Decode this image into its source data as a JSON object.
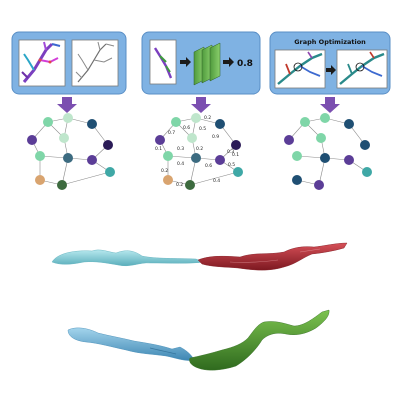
{
  "panels": {
    "step1": {
      "title": ""
    },
    "step2": {
      "output_value": "0.8"
    },
    "step3": {
      "title": "Graph Optimization"
    }
  },
  "edge_weights": [
    "0.7",
    "0.6",
    "0.5",
    "0.2",
    "0.1",
    "0.3",
    "0.2",
    "0.9",
    "0.4",
    "0.6",
    "0.3",
    "0.1",
    "0.2",
    "0.2",
    "0.5",
    "0.4"
  ],
  "colors": {
    "panel_fill": "#7fb2e3",
    "panel_stroke": "#5a8fc6",
    "arrow": "#7b4fb0",
    "node_purple": "#5b3d97",
    "node_teal": "#3fa8a6",
    "node_dark_blue": "#1f4f73",
    "node_light_green": "#bfe6cc",
    "node_mint": "#7fd6a8",
    "node_tan": "#d9a46f",
    "node_dark_green": "#3d6b3f",
    "node_dark_purple": "#2b1b57",
    "node_slate": "#3c6b80",
    "segment_cyan": "#8fd3da",
    "segment_red": "#b0323a",
    "segment_blue": "#6db3d6",
    "segment_green": "#4e8f2e"
  }
}
